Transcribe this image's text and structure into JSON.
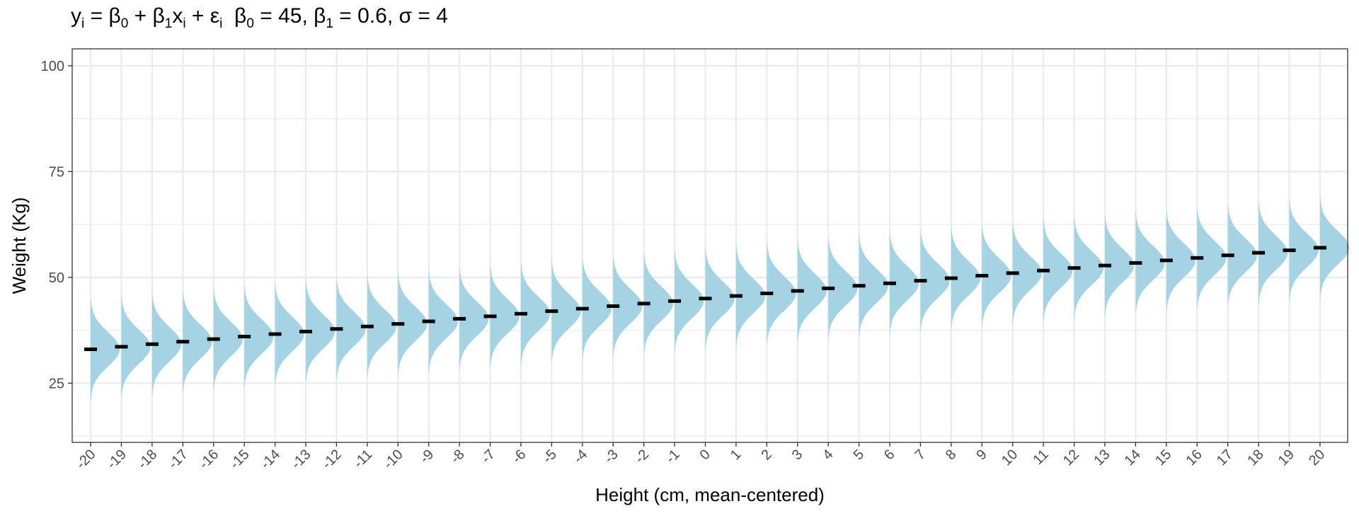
{
  "chart_data": {
    "type": "area",
    "title": {
      "eq_y": "y",
      "eq_i": "i",
      "eq_eq": " = ",
      "eq_beta": "β",
      "eq_0": "0",
      "eq_plus1": " + ",
      "eq_1": "1",
      "eq_x": "x",
      "eq_plus2": " + ",
      "eq_eps": "ε",
      "param_beta0_value": " = 45, ",
      "param_beta1_value": " = 0.6, ",
      "param_sigma": "σ",
      "param_sigma_value": " = 4"
    },
    "xlabel": "Height (cm, mean-centered)",
    "ylabel": "Weight (Kg)",
    "x_ticks": [
      "-20",
      "-19",
      "-18",
      "-17",
      "-16",
      "-15",
      "-14",
      "-13",
      "-12",
      "-11",
      "-10",
      "-9",
      "-8",
      "-7",
      "-6",
      "-5",
      "-4",
      "-3",
      "-2",
      "-1",
      "0",
      "1",
      "2",
      "3",
      "4",
      "5",
      "6",
      "7",
      "8",
      "9",
      "10",
      "11",
      "12",
      "13",
      "14",
      "15",
      "16",
      "17",
      "18",
      "19",
      "20"
    ],
    "y_ticks": [
      25,
      50,
      75,
      100
    ],
    "ylim": [
      11,
      104
    ],
    "xlim": [
      -20.6,
      20.9
    ],
    "grid": true,
    "intercept": 45,
    "slope": 0.6,
    "sigma": 4,
    "x": [
      -20,
      -19,
      -18,
      -17,
      -16,
      -15,
      -14,
      -13,
      -12,
      -11,
      -10,
      -9,
      -8,
      -7,
      -6,
      -5,
      -4,
      -3,
      -2,
      -1,
      0,
      1,
      2,
      3,
      4,
      5,
      6,
      7,
      8,
      9,
      10,
      11,
      12,
      13,
      14,
      15,
      16,
      17,
      18,
      19,
      20
    ],
    "series": [
      {
        "values": [
          33,
          33.6,
          34.2,
          34.8,
          35.4,
          36,
          36.6,
          37.2,
          37.8,
          38.4,
          39,
          39.6,
          40.2,
          40.8,
          41.4,
          42,
          42.6,
          43.2,
          43.8,
          44.4,
          45,
          45.6,
          46.2,
          46.8,
          47.4,
          48,
          48.6,
          49.2,
          49.8,
          50.4,
          51,
          51.6,
          52.2,
          52.8,
          53.4,
          54,
          54.6,
          55.2,
          55.8,
          56.4,
          57
        ]
      }
    ],
    "colors": {
      "density_fill": "#a6d3e3",
      "mean_marker": "#000000",
      "grid": "#ebebeb",
      "panel_border": "#333333"
    }
  }
}
